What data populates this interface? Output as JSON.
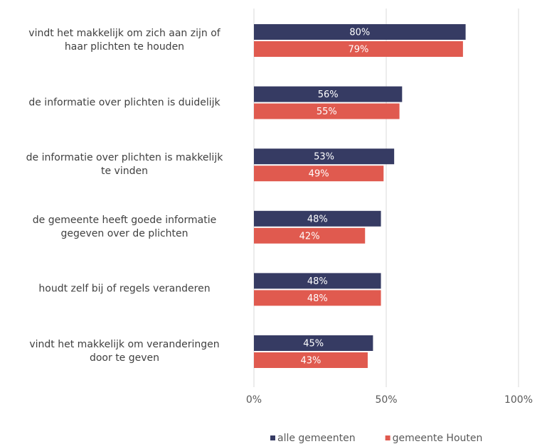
{
  "chart_data": {
    "type": "bar",
    "orientation": "horizontal",
    "categories": [
      "vindt het makkelijk om zich aan zijn of\nhaar plichten te houden",
      "de informatie over plichten is duidelijk",
      "de informatie over plichten is makkelijk\nte vinden",
      "de gemeente heeft goede informatie\ngegeven over de plichten",
      "houdt zelf bij of regels veranderen",
      "vindt het makkelijk om veranderingen\ndoor te geven"
    ],
    "series": [
      {
        "name": "alle gemeenten",
        "color": "#363b63",
        "values": [
          80,
          56,
          53,
          48,
          48,
          45
        ],
        "value_labels": [
          "80%",
          "56%",
          "53%",
          "48%",
          "48%",
          "45%"
        ]
      },
      {
        "name": "gemeente Houten",
        "color": "#e05a4f",
        "values": [
          79,
          55,
          49,
          42,
          48,
          43
        ],
        "value_labels": [
          "79%",
          "55%",
          "49%",
          "42%",
          "48%",
          "43%"
        ]
      }
    ],
    "xlim": [
      0,
      100
    ],
    "xticks": [
      {
        "value": 0,
        "label": "0%"
      },
      {
        "value": 50,
        "label": "50%"
      },
      {
        "value": 100,
        "label": "100%"
      }
    ],
    "grid": true,
    "legend": "bottom"
  }
}
